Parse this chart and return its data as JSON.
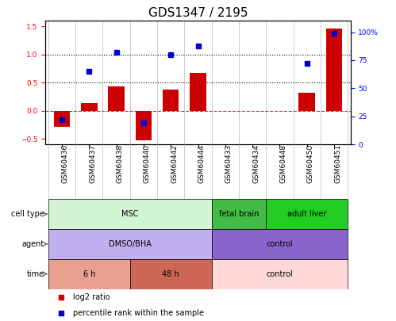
{
  "title": "GDS1347 / 2195",
  "samples": [
    "GSM60436",
    "GSM60437",
    "GSM60438",
    "GSM60440",
    "GSM60442",
    "GSM60444",
    "GSM60433",
    "GSM60434",
    "GSM60448",
    "GSM60450",
    "GSM60451"
  ],
  "log2_ratio": [
    -0.28,
    0.14,
    0.43,
    -0.52,
    0.38,
    0.68,
    0.0,
    0.0,
    0.0,
    0.32,
    1.47
  ],
  "percentile_rank": [
    22,
    65,
    82,
    19,
    80,
    88,
    null,
    null,
    null,
    72,
    99
  ],
  "ylim": [
    -0.6,
    1.6
  ],
  "y2lim": [
    0,
    110
  ],
  "cell_type_groups": [
    {
      "label": "MSC",
      "start": 0,
      "end": 6,
      "color": "#d4f5d4"
    },
    {
      "label": "fetal brain",
      "start": 6,
      "end": 8,
      "color": "#44bb44"
    },
    {
      "label": "adult liver",
      "start": 8,
      "end": 11,
      "color": "#22cc22"
    }
  ],
  "agent_groups": [
    {
      "label": "DMSO/BHA",
      "start": 0,
      "end": 6,
      "color": "#c0b0f0"
    },
    {
      "label": "control",
      "start": 6,
      "end": 11,
      "color": "#8866cc"
    }
  ],
  "time_groups": [
    {
      "label": "6 h",
      "start": 0,
      "end": 3,
      "color": "#e8a090"
    },
    {
      "label": "48 h",
      "start": 3,
      "end": 6,
      "color": "#cc6655"
    },
    {
      "label": "control",
      "start": 6,
      "end": 11,
      "color": "#ffd8d8"
    }
  ],
  "row_labels": [
    "cell type",
    "agent",
    "time"
  ],
  "bar_color": "#cc0000",
  "dot_color": "#0000cc",
  "legend_items": [
    "log2 ratio",
    "percentile rank within the sample"
  ],
  "legend_colors": [
    "#cc0000",
    "#0000cc"
  ],
  "dashed_zero_color": "#cc3333",
  "background_color": "#ffffff",
  "title_fontsize": 11,
  "tick_fontsize": 6.5,
  "row_fontsize": 7.5
}
